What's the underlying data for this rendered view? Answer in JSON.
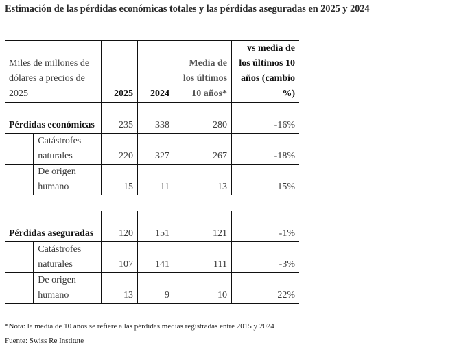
{
  "title": "Estimación de las pérdidas económicas totales y las pérdidas aseguradas en 2025 y 2024",
  "table": {
    "header": {
      "unit_label": "Miles de millones de dólares a precios de 2025",
      "col_2025": "2025",
      "col_2024": "2024",
      "col_avg": "Media de los últimos 10 años*",
      "col_change": "vs media de los últimos 10 años (cambio %)"
    },
    "sections": [
      {
        "label": "Pérdidas económicas",
        "total": {
          "v2025": "235",
          "v2024": "338",
          "avg": "280",
          "change": "-16%"
        },
        "rows": [
          {
            "label": "Catástrofes naturales",
            "v2025": "220",
            "v2024": "327",
            "avg": "267",
            "change": "-18%"
          },
          {
            "label": "De origen humano",
            "v2025": "15",
            "v2024": "11",
            "avg": "13",
            "change": "15%"
          }
        ]
      },
      {
        "label": "Pérdidas aseguradas",
        "total": {
          "v2025": "120",
          "v2024": "151",
          "avg": "121",
          "change": "-1%"
        },
        "rows": [
          {
            "label": "Catástrofes naturales",
            "v2025": "107",
            "v2024": "141",
            "avg": "111",
            "change": "-3%"
          },
          {
            "label": "De origen humano",
            "v2025": "13",
            "v2024": "9",
            "avg": "10",
            "change": "22%"
          }
        ]
      }
    ]
  },
  "footnotes": {
    "note": "*Nota: la media de 10 años se refiere a las pérdidas medias registradas entre 2015 y 2024",
    "source": "Fuente: Swiss Re Institute"
  }
}
